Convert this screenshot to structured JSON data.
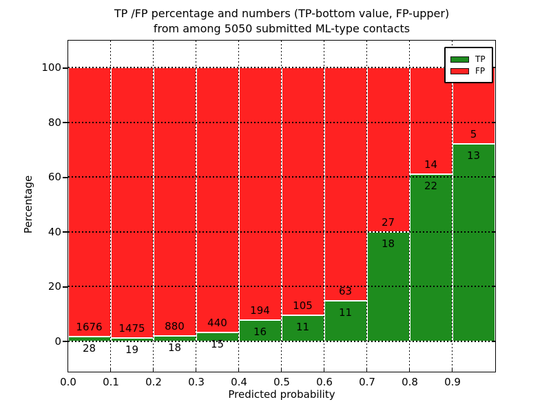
{
  "title": {
    "line1": "TP /FP percentage and numbers (TP-bottom value, FP-upper)",
    "line2": "from among 5050 submitted ML-type contacts"
  },
  "chart_data": {
    "type": "bar",
    "subtype": "stacked-percentage",
    "title": "TP /FP percentage and numbers (TP-bottom value, FP-upper)\nfrom among 5050 submitted ML-type contacts",
    "xlabel": "Predicted probability",
    "ylabel": "Percentage",
    "total_submitted": 5050,
    "x_tick_labels": [
      "0.0",
      "0.1",
      "0.2",
      "0.3",
      "0.4",
      "0.5",
      "0.6",
      "0.7",
      "0.8",
      "0.9"
    ],
    "y_ticks": [
      0,
      20,
      40,
      60,
      80,
      100
    ],
    "xlim": [
      0.0,
      1.0
    ],
    "ylim": [
      -11,
      110
    ],
    "grid": "dotted",
    "legend": {
      "position": "upper-right",
      "entries": [
        {
          "label": "TP",
          "color": "#1e8c1e"
        },
        {
          "label": "FP",
          "color": "#ff2222"
        }
      ]
    },
    "bins": [
      {
        "x_range": [
          0.0,
          0.1
        ],
        "tp": 28,
        "fp": 1676
      },
      {
        "x_range": [
          0.1,
          0.2
        ],
        "tp": 19,
        "fp": 1475
      },
      {
        "x_range": [
          0.2,
          0.3
        ],
        "tp": 18,
        "fp": 880
      },
      {
        "x_range": [
          0.3,
          0.4
        ],
        "tp": 15,
        "fp": 440
      },
      {
        "x_range": [
          0.4,
          0.5
        ],
        "tp": 16,
        "fp": 194
      },
      {
        "x_range": [
          0.5,
          0.6
        ],
        "tp": 11,
        "fp": 105
      },
      {
        "x_range": [
          0.6,
          0.7
        ],
        "tp": 11,
        "fp": 63
      },
      {
        "x_range": [
          0.7,
          0.8
        ],
        "tp": 18,
        "fp": 27
      },
      {
        "x_range": [
          0.8,
          0.9
        ],
        "tp": 22,
        "fp": 14
      },
      {
        "x_range": [
          0.9,
          1.0
        ],
        "tp": 13,
        "fp": 5
      }
    ]
  },
  "colors": {
    "tp": "#1e8c1e",
    "fp": "#ff2222",
    "background": "#ffffff",
    "text": "#000000"
  }
}
